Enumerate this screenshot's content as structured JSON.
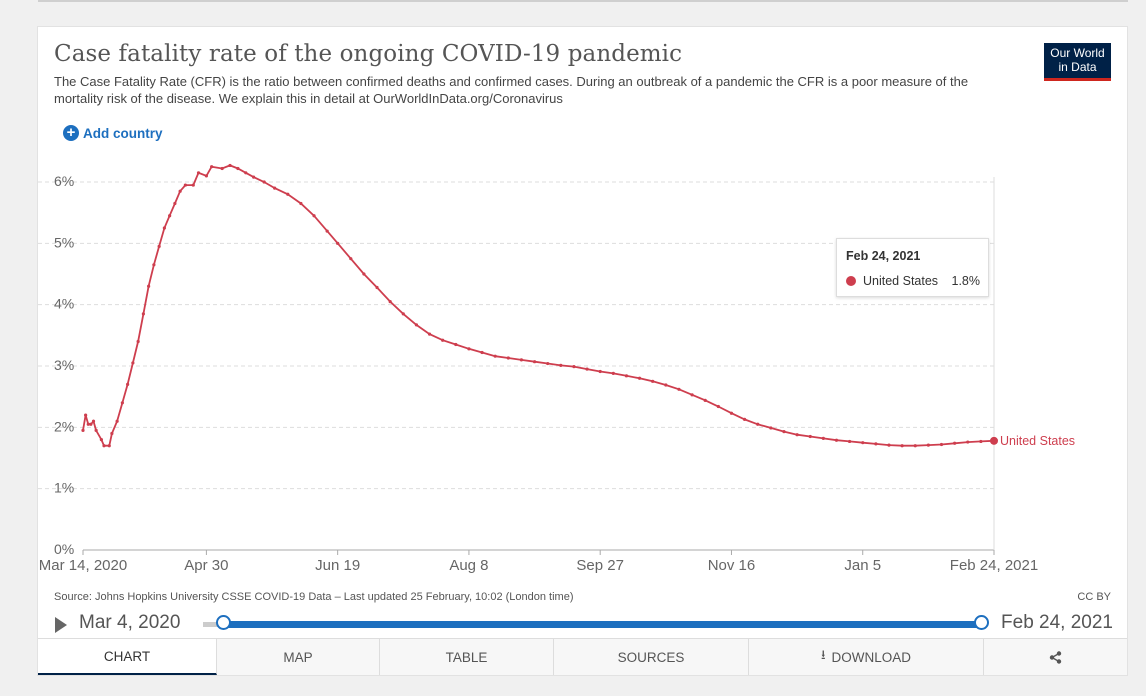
{
  "header": {
    "title": "Case fatality rate of the ongoing COVID-19 pandemic",
    "subtitle": "The Case Fatality Rate (CFR) is the ratio between confirmed deaths and confirmed cases. During an outbreak of a pandemic the CFR is a poor measure of the mortality risk of the disease. We explain this in detail at OurWorldInData.org/Coronavirus",
    "logo_line1": "Our World",
    "logo_line2": "in Data",
    "add_country": "Add country"
  },
  "tooltip": {
    "date": "Feb 24, 2021",
    "series": "United States",
    "value": "1.8%"
  },
  "footer": {
    "source": "Source: Johns Hopkins University CSSE COVID-19 Data – Last updated 25 February, 10:02 (London time)",
    "license": "CC BY"
  },
  "timeline": {
    "start": "Mar 4, 2020",
    "end": "Feb 24, 2021"
  },
  "tabs": [
    {
      "label": "CHART",
      "active": true
    },
    {
      "label": "MAP"
    },
    {
      "label": "TABLE"
    },
    {
      "label": "SOURCES"
    },
    {
      "label": "DOWNLOAD"
    }
  ],
  "colors": {
    "series": "#ce3e4e",
    "accent": "#1d6fbf",
    "logo_bg": "#002147"
  },
  "chart_data": {
    "type": "line",
    "title": "Case fatality rate of the ongoing COVID-19 pandemic",
    "ylim": [
      0,
      6
    ],
    "xlim": [
      "2020-03-14",
      "2021-02-24"
    ],
    "y_ticks": [
      "0%",
      "1%",
      "2%",
      "3%",
      "4%",
      "5%",
      "6%"
    ],
    "x_ticks": [
      {
        "date": "2020-03-14",
        "label": "Mar 14, 2020"
      },
      {
        "date": "2020-04-30",
        "label": "Apr 30"
      },
      {
        "date": "2020-06-19",
        "label": "Jun 19"
      },
      {
        "date": "2020-08-08",
        "label": "Aug 8"
      },
      {
        "date": "2020-09-27",
        "label": "Sep 27"
      },
      {
        "date": "2020-11-16",
        "label": "Nov 16"
      },
      {
        "date": "2021-01-05",
        "label": "Jan 5"
      },
      {
        "date": "2021-02-24",
        "label": "Feb 24, 2021"
      }
    ],
    "grid": true,
    "series": [
      {
        "name": "United States",
        "points": [
          [
            "2020-03-14",
            1.95
          ],
          [
            "2020-03-15",
            2.2
          ],
          [
            "2020-03-16",
            2.05
          ],
          [
            "2020-03-17",
            2.05
          ],
          [
            "2020-03-18",
            2.1
          ],
          [
            "2020-03-19",
            1.95
          ],
          [
            "2020-03-21",
            1.8
          ],
          [
            "2020-03-22",
            1.7
          ],
          [
            "2020-03-24",
            1.7
          ],
          [
            "2020-03-25",
            1.9
          ],
          [
            "2020-03-27",
            2.1
          ],
          [
            "2020-03-29",
            2.4
          ],
          [
            "2020-03-31",
            2.7
          ],
          [
            "2020-04-02",
            3.05
          ],
          [
            "2020-04-04",
            3.4
          ],
          [
            "2020-04-06",
            3.85
          ],
          [
            "2020-04-08",
            4.3
          ],
          [
            "2020-04-10",
            4.65
          ],
          [
            "2020-04-12",
            4.95
          ],
          [
            "2020-04-14",
            5.25
          ],
          [
            "2020-04-16",
            5.45
          ],
          [
            "2020-04-18",
            5.65
          ],
          [
            "2020-04-20",
            5.85
          ],
          [
            "2020-04-22",
            5.95
          ],
          [
            "2020-04-25",
            5.95
          ],
          [
            "2020-04-27",
            6.15
          ],
          [
            "2020-04-30",
            6.1
          ],
          [
            "2020-05-02",
            6.25
          ],
          [
            "2020-05-06",
            6.22
          ],
          [
            "2020-05-09",
            6.27
          ],
          [
            "2020-05-12",
            6.22
          ],
          [
            "2020-05-15",
            6.15
          ],
          [
            "2020-05-18",
            6.08
          ],
          [
            "2020-05-22",
            6.0
          ],
          [
            "2020-05-26",
            5.9
          ],
          [
            "2020-05-31",
            5.8
          ],
          [
            "2020-06-05",
            5.65
          ],
          [
            "2020-06-10",
            5.45
          ],
          [
            "2020-06-15",
            5.2
          ],
          [
            "2020-06-19",
            5.0
          ],
          [
            "2020-06-24",
            4.75
          ],
          [
            "2020-06-29",
            4.5
          ],
          [
            "2020-07-04",
            4.28
          ],
          [
            "2020-07-09",
            4.05
          ],
          [
            "2020-07-14",
            3.85
          ],
          [
            "2020-07-19",
            3.67
          ],
          [
            "2020-07-24",
            3.52
          ],
          [
            "2020-07-29",
            3.42
          ],
          [
            "2020-08-03",
            3.35
          ],
          [
            "2020-08-08",
            3.28
          ],
          [
            "2020-08-13",
            3.22
          ],
          [
            "2020-08-18",
            3.16
          ],
          [
            "2020-08-23",
            3.13
          ],
          [
            "2020-08-28",
            3.1
          ],
          [
            "2020-09-02",
            3.07
          ],
          [
            "2020-09-07",
            3.04
          ],
          [
            "2020-09-12",
            3.01
          ],
          [
            "2020-09-17",
            2.99
          ],
          [
            "2020-09-22",
            2.95
          ],
          [
            "2020-09-27",
            2.91
          ],
          [
            "2020-10-02",
            2.88
          ],
          [
            "2020-10-07",
            2.84
          ],
          [
            "2020-10-12",
            2.8
          ],
          [
            "2020-10-17",
            2.75
          ],
          [
            "2020-10-22",
            2.69
          ],
          [
            "2020-10-27",
            2.62
          ],
          [
            "2020-11-01",
            2.53
          ],
          [
            "2020-11-06",
            2.44
          ],
          [
            "2020-11-11",
            2.34
          ],
          [
            "2020-11-16",
            2.23
          ],
          [
            "2020-11-21",
            2.13
          ],
          [
            "2020-11-26",
            2.05
          ],
          [
            "2020-12-01",
            1.99
          ],
          [
            "2020-12-06",
            1.93
          ],
          [
            "2020-12-11",
            1.88
          ],
          [
            "2020-12-16",
            1.85
          ],
          [
            "2020-12-21",
            1.82
          ],
          [
            "2020-12-26",
            1.79
          ],
          [
            "2020-12-31",
            1.77
          ],
          [
            "2021-01-05",
            1.75
          ],
          [
            "2021-01-10",
            1.73
          ],
          [
            "2021-01-15",
            1.71
          ],
          [
            "2021-01-20",
            1.7
          ],
          [
            "2021-01-25",
            1.7
          ],
          [
            "2021-01-30",
            1.71
          ],
          [
            "2021-02-04",
            1.72
          ],
          [
            "2021-02-09",
            1.74
          ],
          [
            "2021-02-14",
            1.76
          ],
          [
            "2021-02-19",
            1.77
          ],
          [
            "2021-02-24",
            1.78
          ]
        ]
      }
    ]
  }
}
